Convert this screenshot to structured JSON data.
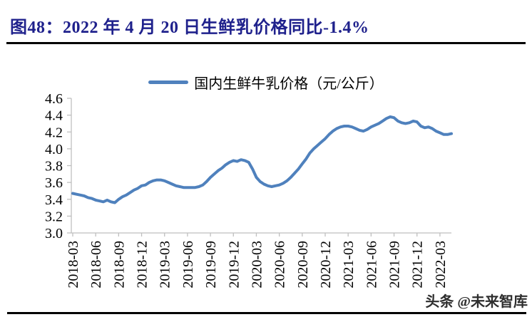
{
  "header": {
    "title": "图48：2022 年 4 月 20 日生鲜乳价格同比-1.4%",
    "title_color": "#1f218c"
  },
  "watermark": {
    "text": "头条 @未来智库"
  },
  "chart_data": {
    "type": "line",
    "title": "",
    "legend": [
      "国内生鲜牛乳价格（元/公斤）"
    ],
    "legend_position": "top-center",
    "grid": false,
    "ylim": [
      3.0,
      4.6
    ],
    "y_ticks": [
      "3.0",
      "3.2",
      "3.4",
      "3.6",
      "3.8",
      "4.0",
      "4.2",
      "4.4",
      "4.6"
    ],
    "x_tick_labels": [
      "2018-03",
      "2018-06",
      "2018-09",
      "2018-12",
      "2019-03",
      "2019-06",
      "2019-09",
      "2019-12",
      "2020-03",
      "2020-06",
      "2020-09",
      "2020-12",
      "2021-03",
      "2021-06",
      "2021-09",
      "2021-12",
      "2022-03"
    ],
    "x_tick_point_interval": 6,
    "axis_color": "#bfbfbf",
    "tick_label_color": "#000000",
    "series": [
      {
        "name": "国内生鲜牛乳价格（元/公斤）",
        "color": "#4F81BD",
        "x_start": "2018-03",
        "x_end": "2022-04",
        "x_step": "half-month (values estimated from plotted weekly curve)",
        "values": [
          3.47,
          3.46,
          3.45,
          3.44,
          3.42,
          3.41,
          3.39,
          3.38,
          3.37,
          3.39,
          3.37,
          3.36,
          3.4,
          3.43,
          3.45,
          3.48,
          3.51,
          3.53,
          3.56,
          3.57,
          3.6,
          3.62,
          3.63,
          3.63,
          3.62,
          3.6,
          3.58,
          3.56,
          3.55,
          3.54,
          3.54,
          3.54,
          3.54,
          3.55,
          3.57,
          3.61,
          3.66,
          3.7,
          3.74,
          3.77,
          3.81,
          3.84,
          3.86,
          3.85,
          3.87,
          3.86,
          3.84,
          3.76,
          3.66,
          3.61,
          3.58,
          3.56,
          3.55,
          3.56,
          3.57,
          3.59,
          3.62,
          3.66,
          3.71,
          3.76,
          3.82,
          3.88,
          3.95,
          4.0,
          4.04,
          4.08,
          4.12,
          4.17,
          4.21,
          4.24,
          4.26,
          4.27,
          4.27,
          4.26,
          4.24,
          4.22,
          4.21,
          4.23,
          4.26,
          4.28,
          4.3,
          4.33,
          4.36,
          4.38,
          4.37,
          4.33,
          4.31,
          4.3,
          4.31,
          4.33,
          4.32,
          4.27,
          4.25,
          4.26,
          4.24,
          4.21,
          4.19,
          4.17,
          4.17,
          4.18
        ]
      }
    ]
  }
}
